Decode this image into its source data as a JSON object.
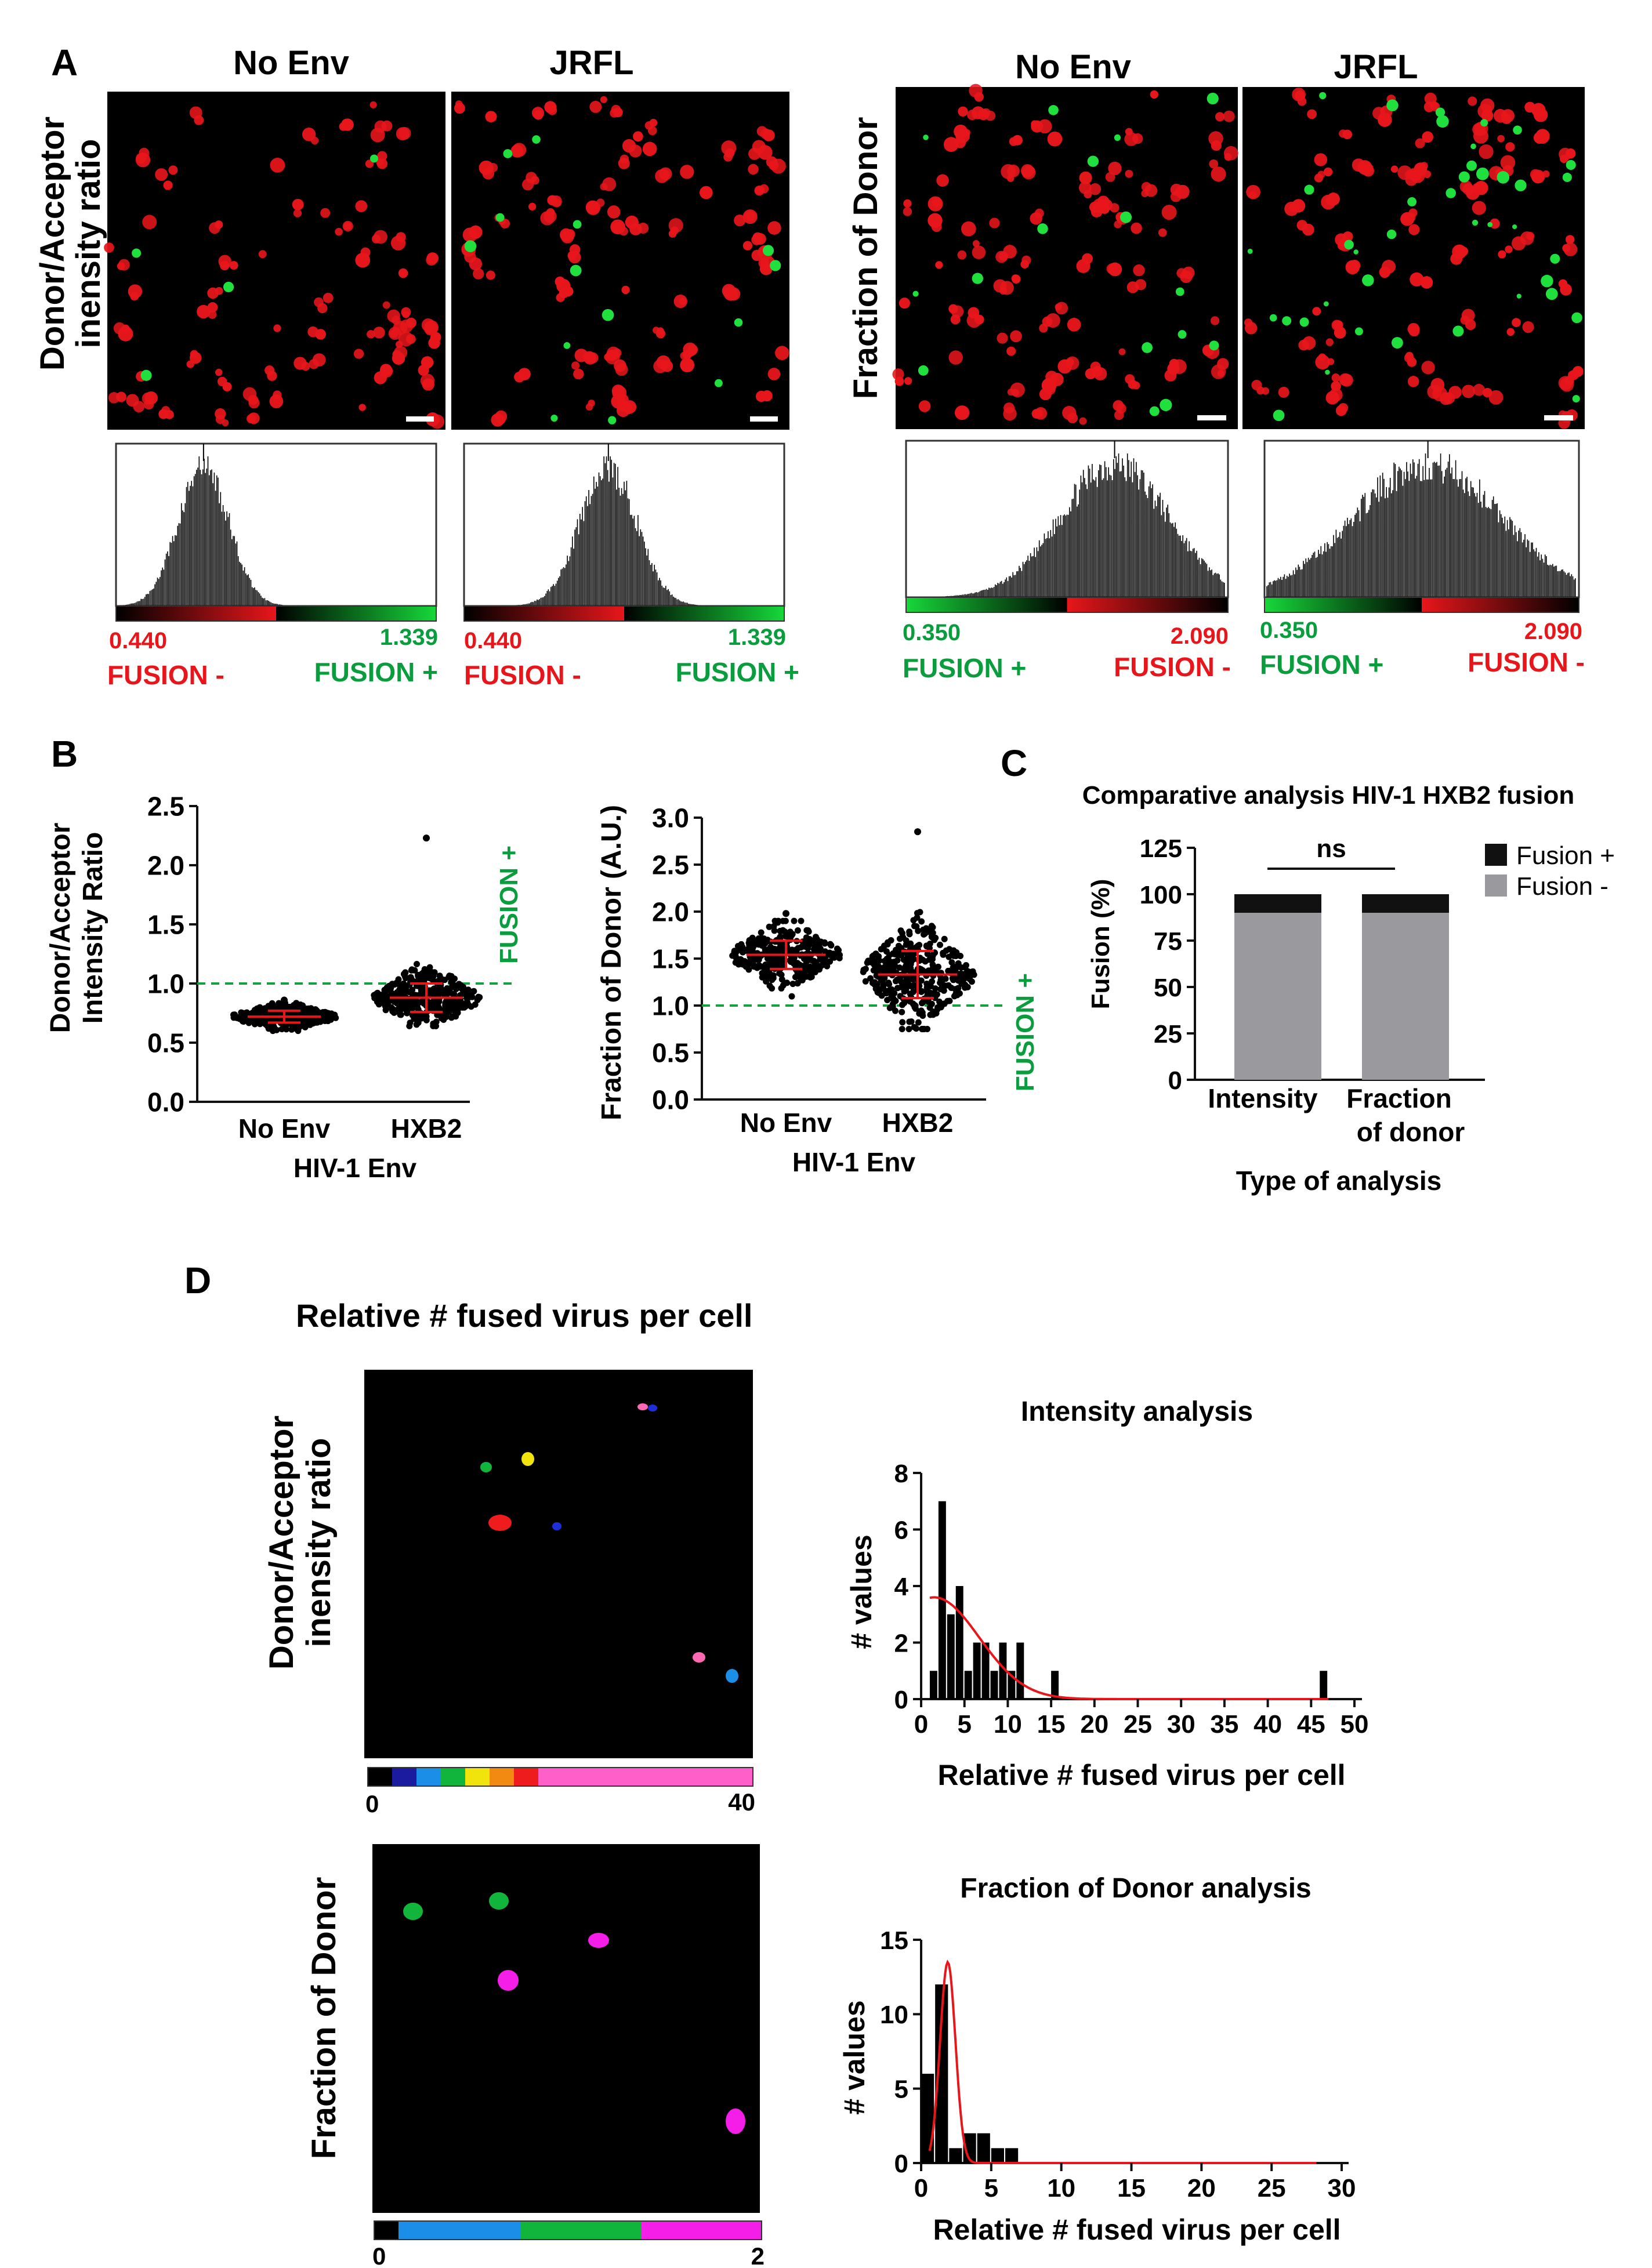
{
  "colors": {
    "red": "#e8161b",
    "green": "#0a9d3e",
    "dashed": "#12a23d",
    "bar_black": "#111111",
    "bar_gray": "#9a9a9e",
    "fit_red": "#e8161b"
  },
  "panel_labels": [
    "A",
    "B",
    "C",
    "D"
  ],
  "panel_a": {
    "left_ylabel": [
      "Donor/Acceptor",
      "inensity ratio"
    ],
    "right_ylabel": "Fraction of Donor",
    "col_no_env": "No Env",
    "col_jrfl": "JRFL",
    "hist_intensity": {
      "min": "0.440",
      "max": "1.339",
      "left_label": "FUSION -",
      "right_label": "FUSION +"
    },
    "hist_fraction": {
      "min": "0.350",
      "max": "2.090",
      "left_label": "FUSION +",
      "right_label": "FUSION -"
    }
  },
  "panel_b": {
    "left": {
      "ylabel": [
        "Donor/Acceptor",
        "Intensity Ratio"
      ],
      "xlabel": "HIV-1 Env",
      "categories": [
        "No Env",
        "HXB2"
      ],
      "yticks": [
        "0.0",
        "0.5",
        "1.0",
        "1.5",
        "2.0",
        "2.5"
      ],
      "fusion_label": "FUSION +"
    },
    "right": {
      "ylabel": "Fraction of Donor (A.U.)",
      "xlabel": "HIV-1 Env",
      "categories": [
        "No Env",
        "HXB2"
      ],
      "yticks": [
        "0.0",
        "0.5",
        "1.0",
        "1.5",
        "2.0",
        "2.5",
        "3.0"
      ],
      "fusion_label": "FUSION +"
    }
  },
  "panel_c": {
    "title": "Comparative analysis HIV-1 HXB2 fusion",
    "ylabel": "Fusion (%)",
    "xlabel": "Type of analysis",
    "cat1": "Intensity",
    "cat2_line1": "Fraction",
    "cat2_line2": "of donor",
    "yticks": [
      "0",
      "25",
      "50",
      "75",
      "100",
      "125"
    ],
    "ns_label": "ns",
    "legend_fusion_pos": "Fusion +",
    "legend_fusion_neg": "Fusion -"
  },
  "panel_d": {
    "title": "Relative # fused virus per cell",
    "map1_ylabel": [
      "Donor/Acceptor",
      "inensity ratio"
    ],
    "map2_ylabel": "Fraction of Donor",
    "scale1_min": "0",
    "scale1_max": "40",
    "scale2_min": "0",
    "scale2_max": "2",
    "hist1_title": "Intensity analysis",
    "hist2_title": "Fraction of Donor analysis",
    "ylabel": "# values",
    "xlabel": "Relative # fused virus per cell",
    "hist1_xticks": [
      "0",
      "5",
      "10",
      "15",
      "20",
      "25",
      "30",
      "35",
      "40",
      "45",
      "50"
    ],
    "hist1_yticks": [
      "0",
      "2",
      "4",
      "6",
      "8"
    ],
    "hist2_xticks": [
      "0",
      "5",
      "10",
      "15",
      "20",
      "25",
      "30"
    ],
    "hist2_yticks": [
      "0",
      "5",
      "10",
      "15"
    ]
  },
  "chart_data": [
    {
      "type": "scatter",
      "title": "Donor/Acceptor Intensity Ratio",
      "xlabel": "HIV-1 Env",
      "ylabel": "Donor/Acceptor Intensity Ratio",
      "categories": [
        "No Env",
        "HXB2"
      ],
      "ylim": [
        0,
        2.5
      ],
      "threshold": 1.0,
      "series": [
        {
          "name": "No Env",
          "mean": 0.72,
          "sd": 0.05,
          "n": 320,
          "max": 0.86,
          "min": 0.6
        },
        {
          "name": "HXB2",
          "mean": 0.88,
          "sd": 0.12,
          "n": 360,
          "max": 2.23,
          "min": 0.64
        }
      ]
    },
    {
      "type": "scatter",
      "title": "Fraction of Donor (A.U.)",
      "xlabel": "HIV-1 Env",
      "ylabel": "Fraction of Donor (A.U.)",
      "categories": [
        "No Env",
        "HXB2"
      ],
      "ylim": [
        0,
        3.0
      ],
      "threshold": 1.0,
      "series": [
        {
          "name": "No Env",
          "mean": 1.54,
          "sd": 0.15,
          "n": 320,
          "max": 1.98,
          "min": 1.02
        },
        {
          "name": "HXB2",
          "mean": 1.33,
          "sd": 0.25,
          "n": 380,
          "max": 2.85,
          "min": 0.75
        }
      ]
    },
    {
      "type": "bar",
      "title": "Comparative analysis HIV-1 HXB2 fusion",
      "xlabel": "Type of analysis",
      "ylabel": "Fusion (%)",
      "categories": [
        "Intensity",
        "Fraction of donor"
      ],
      "ylim": [
        0,
        125
      ],
      "series": [
        {
          "name": "Fusion -",
          "values": [
            90,
            90
          ]
        },
        {
          "name": "Fusion +",
          "values": [
            10,
            10
          ]
        }
      ]
    },
    {
      "type": "bar",
      "title": "Intensity analysis",
      "xlabel": "Relative # fused virus per cell",
      "ylabel": "# values",
      "xlim": [
        0,
        50
      ],
      "ylim": [
        0,
        8
      ],
      "bin_width": 1,
      "x": [
        1,
        2,
        3,
        4,
        5,
        6,
        7,
        8,
        9,
        10,
        11,
        12,
        13,
        14,
        15,
        46
      ],
      "values": [
        1,
        7,
        3,
        4,
        1,
        2,
        2,
        1,
        2,
        1,
        2,
        0,
        0,
        0,
        1,
        1
      ],
      "fit": {
        "type": "gaussian",
        "peak": 3.6,
        "center": 1.5,
        "sigma": 5.2
      }
    },
    {
      "type": "bar",
      "title": "Fraction of Donor analysis",
      "xlabel": "Relative # fused virus per cell",
      "ylabel": "# values",
      "xlim": [
        0,
        30
      ],
      "ylim": [
        0,
        15
      ],
      "bin_width": 1,
      "x": [
        0,
        1,
        2,
        3,
        4,
        5,
        6,
        7
      ],
      "values": [
        6,
        12,
        1,
        2,
        2,
        1,
        1,
        0
      ],
      "fit": {
        "type": "gaussian",
        "peak": 13.5,
        "center": 1.9,
        "sigma": 0.55
      }
    }
  ]
}
